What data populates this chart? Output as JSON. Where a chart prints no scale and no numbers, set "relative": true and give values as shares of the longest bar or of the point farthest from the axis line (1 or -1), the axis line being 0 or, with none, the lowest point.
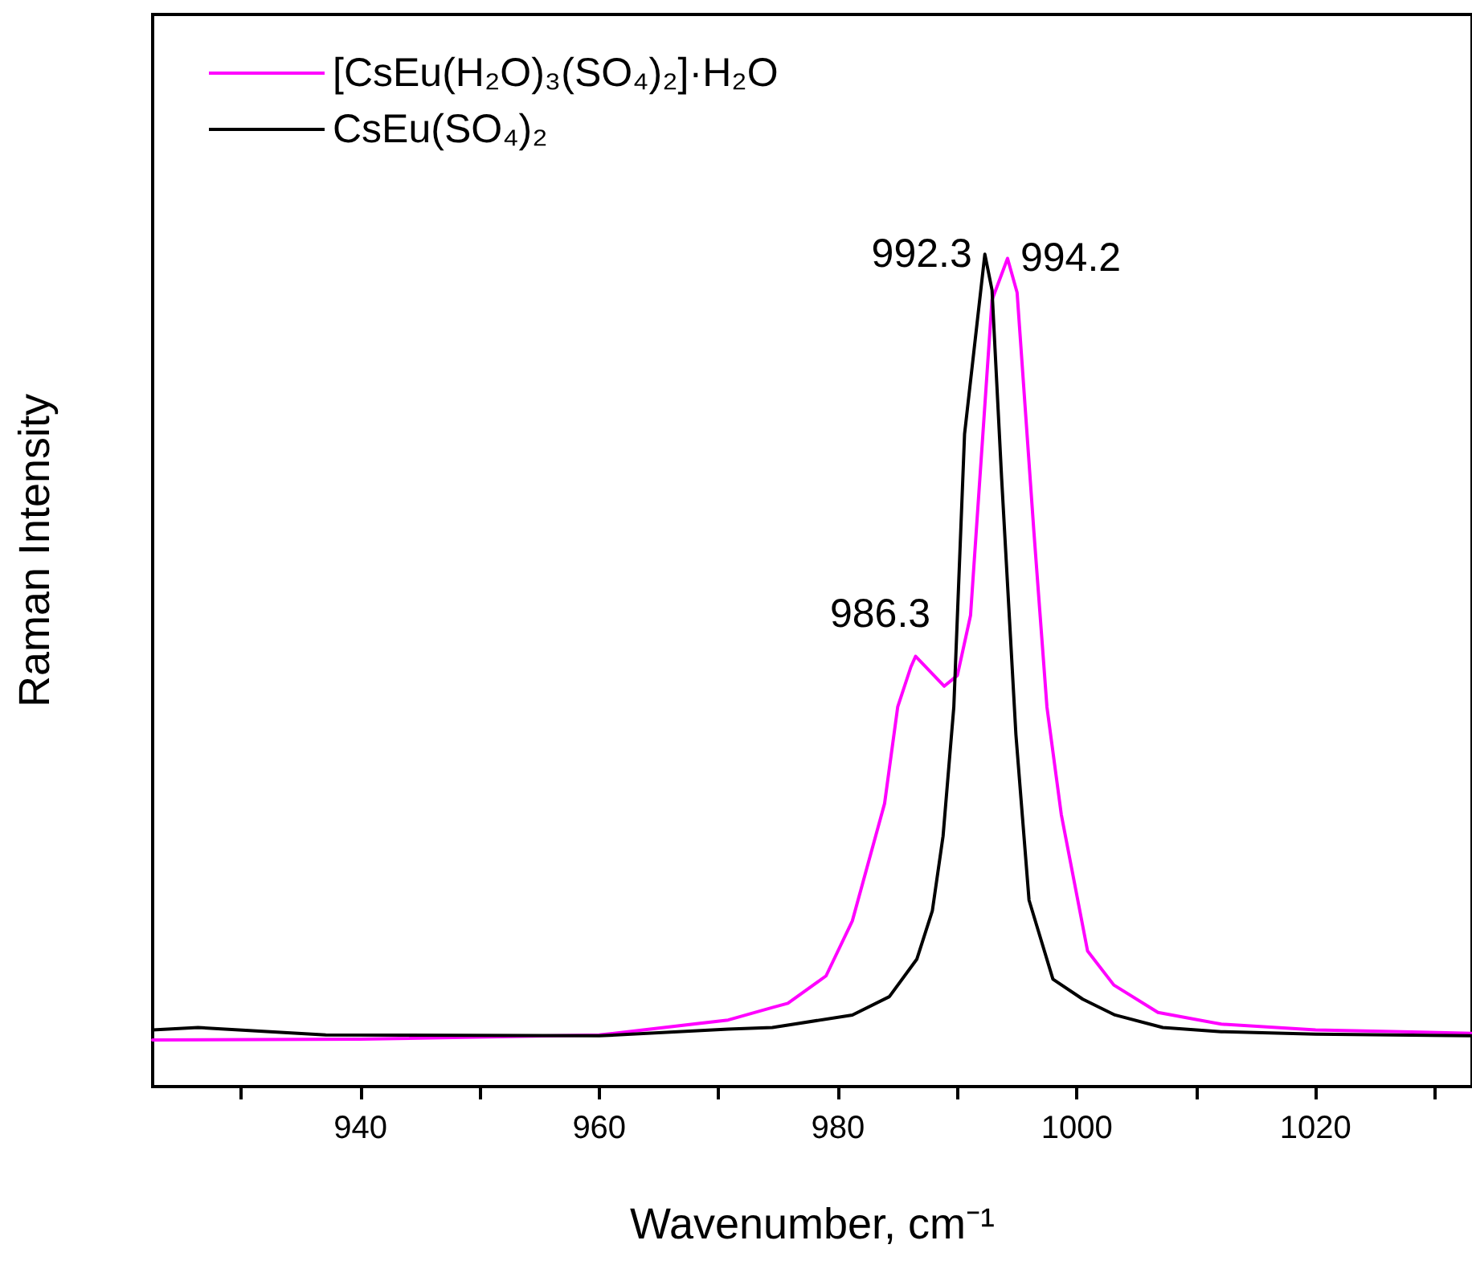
{
  "chart_data": {
    "type": "line",
    "xlabel": "Wavenumber, cm⁻¹",
    "ylabel": "Raman Intensity",
    "relative": true,
    "xlim": [
      922.6,
      1033.1
    ],
    "xticks": [
      {
        "value": 930,
        "label": null
      },
      940,
      {
        "value": 950,
        "label": null
      },
      960,
      {
        "value": 970,
        "label": null
      },
      980,
      {
        "value": 990,
        "label": null
      },
      1000,
      {
        "value": 1010,
        "label": null
      },
      1020,
      {
        "value": 1030,
        "label": null
      }
    ],
    "legend": "top left",
    "grid": false,
    "marker": "none",
    "line_style": "solid",
    "tick_labels": "x",
    "series": [
      {
        "name": "[CsEu(H₂O)₃(SO₄)₂]·H₂O",
        "color": "#ff00ff",
        "x": [
          922.6,
          940,
          960,
          970.8,
          974.5,
          975.8,
          979.0,
          981.2,
          983.9,
          985.0,
          986.1,
          986.5,
          988.9,
          990.0,
          991.1,
          992.9,
          994.2,
          995.0,
          996.4,
          997.5,
          998.7,
          1000.9,
          1003.1,
          1006.8,
          1012.1,
          1020,
          1033.1
        ],
        "values": [
          0.056,
          0.057,
          0.062,
          0.08,
          0.095,
          0.1,
          0.133,
          0.199,
          0.34,
          0.456,
          0.504,
          0.517,
          0.481,
          0.494,
          0.566,
          0.945,
          0.995,
          0.954,
          0.668,
          0.456,
          0.327,
          0.163,
          0.122,
          0.089,
          0.075,
          0.068,
          0.064
        ]
      },
      {
        "name": "CsEu(SO₄)₂",
        "color": "#000000",
        "x": [
          922.6,
          926.4,
          937.1,
          960,
          970.8,
          974.5,
          981.2,
          984.3,
          986.6,
          987.9,
          988.8,
          989.7,
          990.6,
          992.3,
          992.9,
          993.7,
          994.9,
          996.0,
          998.0,
          1000.5,
          1003.2,
          1007.2,
          1012.1,
          1020,
          1033.1
        ],
        "values": [
          0.068,
          0.071,
          0.062,
          0.061,
          0.069,
          0.071,
          0.086,
          0.108,
          0.153,
          0.211,
          0.301,
          0.456,
          0.784,
          1.0,
          0.957,
          0.732,
          0.423,
          0.224,
          0.129,
          0.105,
          0.086,
          0.071,
          0.066,
          0.063,
          0.061
        ]
      }
    ],
    "annotations": [
      {
        "text": "992.3",
        "x": 992.3,
        "y": 1.0
      },
      {
        "text": "994.2",
        "x": 994.2,
        "y": 0.995
      },
      {
        "text": "986.3",
        "x": 986.5,
        "y": 0.517
      }
    ]
  }
}
